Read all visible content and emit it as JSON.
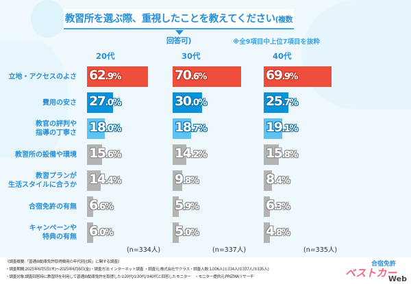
{
  "title": "教習所を選ぶ際、重視したことを教えてください",
  "title_suffix": "(複数回答可)",
  "note": "※全9項目中上位7項目を抜粋",
  "colors": {
    "rank1": "#ee4e3b",
    "rank2": "#0a92da",
    "rank3": "#5ec2f2",
    "other": "#b3b3b3",
    "text": "#2a8fd6"
  },
  "chart_data": {
    "type": "bar",
    "orientation": "horizontal",
    "categories": [
      "立地・アクセスのよさ",
      "費用の安さ",
      "教官の評判や\n指導の丁寧さ",
      "教習所の設備や環境",
      "教習プランが\n生活スタイルに合うか",
      "合宿免許の有無",
      "キャンペーンや\n特典の有無"
    ],
    "unit": "%",
    "series": [
      {
        "name": "20代",
        "n": "(n=334人)",
        "values": [
          62.9,
          27.0,
          18.0,
          15.6,
          14.4,
          6.6,
          6.0
        ]
      },
      {
        "name": "30代",
        "n": "(n=337人)",
        "values": [
          70.6,
          30.0,
          18.7,
          14.2,
          9.8,
          5.9,
          5.0
        ]
      },
      {
        "name": "40代",
        "n": "(n=335人)",
        "values": [
          69.9,
          25.7,
          19.1,
          15.8,
          8.4,
          6.3,
          4.8
        ]
      }
    ]
  },
  "footer": {
    "line1": "《調査概要:「普通自動車免許取得費用の年代別比較」に関する調査》",
    "line2": "・調査期間:2025年6月5日(木)〜2025年6月6日(金)・調査方法:インターネット調査 ・調査元:株式会社サクラス・調査人数:1,006人(①334人/②337人/③335人)",
    "line3": "・調査対象:調査回答時に教習所を利用して普通自動車免許を取得した①20代/②30代/③40代と回答したモニター　・モニター提供元:PRIZMAリサーチ"
  },
  "logo": {
    "text1": "合宿免許",
    "text2": "ベストカー",
    "text3": "Web"
  }
}
